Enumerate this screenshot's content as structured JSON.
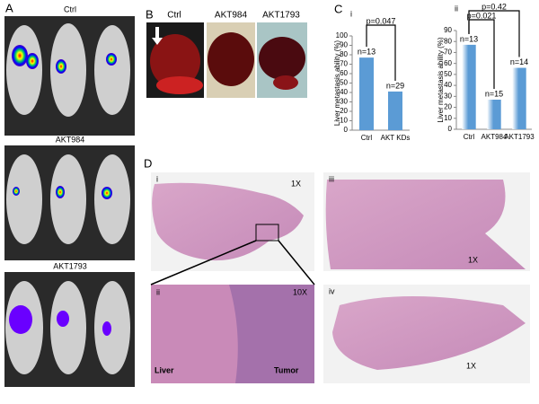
{
  "panels": {
    "A": {
      "label": "A",
      "groups": [
        "Ctrl",
        "AKT984",
        "AKT1793"
      ]
    },
    "B": {
      "label": "B",
      "samples": [
        "Ctrl",
        "AKT984",
        "AKT1793"
      ]
    },
    "C": {
      "label": "C"
    },
    "D": {
      "label": "D",
      "images": [
        {
          "label": "i",
          "magnification": "1X"
        },
        {
          "label": "ii",
          "magnification": "10X",
          "left_tissue": "Liver",
          "right_tissue": "Tumor"
        },
        {
          "label": "iii",
          "magnification": "1X"
        },
        {
          "label": "iv",
          "magnification": "1X"
        }
      ]
    }
  },
  "chart_data": [
    {
      "type": "bar",
      "label": "i",
      "y_label": "Liver metastasis ability (%)",
      "categories": [
        "Ctrl",
        "AKT KDs"
      ],
      "values": [
        77,
        41
      ],
      "n_labels": [
        "n=13",
        "n=29"
      ],
      "p_labels": [
        "p=0.047"
      ],
      "color": "#5b9bd5",
      "fill_style": "solid",
      "ylim": [
        0,
        100
      ],
      "yticks": [
        0,
        10,
        20,
        30,
        40,
        50,
        60,
        70,
        80,
        90,
        100
      ]
    },
    {
      "type": "bar",
      "label": "ii",
      "y_label": "Liver metastasis ability (%)",
      "categories": [
        "Ctrl",
        "AKT984",
        "AKT1793"
      ],
      "values": [
        77,
        27,
        56
      ],
      "n_labels": [
        "n=13",
        "n=15",
        "n=14"
      ],
      "p_labels": [
        "p=0.021",
        "p=0.42"
      ],
      "color": "#5b9bd5",
      "fill_style": "gradient",
      "ylim": [
        0,
        90
      ],
      "yticks": [
        0,
        10,
        20,
        30,
        40,
        50,
        60,
        70,
        80,
        90
      ]
    }
  ]
}
